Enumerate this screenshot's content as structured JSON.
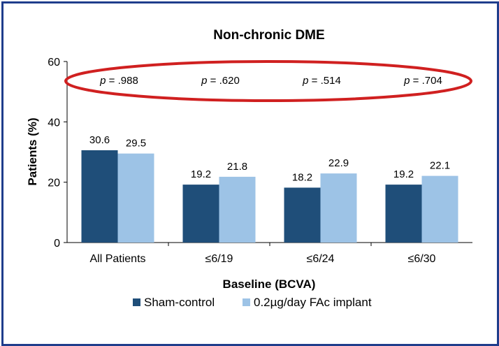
{
  "chart_data": {
    "type": "bar",
    "title": "Non-chronic DME",
    "xlabel": "Baseline (BCVA)",
    "ylabel": "Patients (%)",
    "ylim": [
      0,
      60
    ],
    "yticks": [
      "0",
      "20",
      "40",
      "60"
    ],
    "categories": [
      "All Patients",
      "≤6/19",
      "≤6/24",
      "≤6/30"
    ],
    "series": [
      {
        "name": "Sham-control",
        "values": [
          30.6,
          19.2,
          18.2,
          19.2
        ],
        "labels": [
          "30.6",
          "19.2",
          "18.2",
          "19.2"
        ],
        "color": "#1f4e79"
      },
      {
        "name": "0.2µg/day FAc implant",
        "values": [
          29.5,
          21.8,
          22.9,
          22.1
        ],
        "labels": [
          "29.5",
          "21.8",
          "22.9",
          "22.1"
        ],
        "color": "#9dc3e6"
      }
    ],
    "p_values": [
      "= .988",
      "= .620",
      "= .514",
      "= .704"
    ],
    "p_symbol": "p",
    "highlight_color": "#d02020",
    "grid": false,
    "legend_position": "bottom"
  }
}
